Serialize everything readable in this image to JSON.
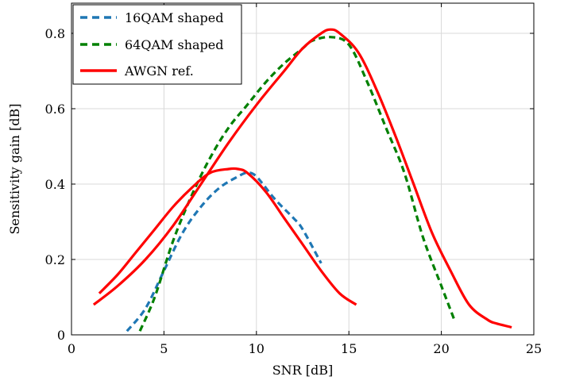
{
  "chart_data": {
    "type": "line",
    "title": "",
    "xlabel": "SNR [dB]",
    "ylabel": "Sensitivity gain [dB]",
    "xlim": [
      0,
      25
    ],
    "ylim": [
      0,
      0.88
    ],
    "xticks": [
      0,
      5,
      10,
      15,
      20,
      25
    ],
    "xtick_labels": [
      "0",
      "5",
      "10",
      "15",
      "20",
      "25"
    ],
    "yticks": [
      0,
      0.2,
      0.4,
      0.6,
      0.8
    ],
    "ytick_labels": [
      "0",
      "0.2",
      "0.4",
      "0.6",
      "0.8"
    ],
    "grid": true,
    "legend_position": "top-left",
    "legend": [
      {
        "label": "16QAM shaped",
        "color": "#1f77b4",
        "style": "dashed"
      },
      {
        "label": "64QAM shaped",
        "color": "#008000",
        "style": "dashed"
      },
      {
        "label": "AWGN ref.",
        "color": "#ff0000",
        "style": "solid"
      }
    ],
    "series": [
      {
        "legend_index": 0,
        "color": "#1f77b4",
        "style": "dashed",
        "x": [
          3,
          4,
          5,
          6,
          7,
          8,
          9,
          9.5,
          10,
          11,
          12,
          12.5,
          13.5
        ],
        "y": [
          0.01,
          0.07,
          0.17,
          0.27,
          0.34,
          0.39,
          0.42,
          0.43,
          0.42,
          0.36,
          0.31,
          0.28,
          0.19
        ]
      },
      {
        "legend_index": 1,
        "color": "#008000",
        "style": "dashed",
        "x": [
          3.7,
          4.5,
          5.5,
          6.5,
          7.5,
          8.5,
          9.5,
          10.5,
          11.5,
          12.5,
          13,
          14,
          15,
          16,
          17,
          18,
          19,
          20,
          20.7
        ],
        "y": [
          0.01,
          0.1,
          0.25,
          0.37,
          0.47,
          0.55,
          0.61,
          0.67,
          0.72,
          0.76,
          0.78,
          0.79,
          0.77,
          0.67,
          0.55,
          0.43,
          0.26,
          0.13,
          0.04
        ]
      },
      {
        "legend_index": 2,
        "color": "#ff0000",
        "style": "solid",
        "x": [
          1.5,
          2.5,
          3.5,
          4.5,
          5.5,
          6.5,
          7.5,
          8.5,
          9,
          9.5,
          10.5,
          11.5,
          12.5,
          13.5,
          14.5,
          15.4
        ],
        "y": [
          0.11,
          0.16,
          0.22,
          0.28,
          0.34,
          0.39,
          0.43,
          0.44,
          0.44,
          0.43,
          0.38,
          0.31,
          0.24,
          0.17,
          0.11,
          0.08
        ]
      },
      {
        "legend_index": null,
        "color": "#ff0000",
        "style": "solid",
        "x": [
          1.2,
          2.5,
          4,
          5.5,
          7,
          8.5,
          10,
          11.5,
          12.5,
          13.5,
          14,
          14.5,
          15.5,
          16.5,
          17.5,
          18.5,
          19.5,
          20.5,
          21.5,
          22.5,
          23,
          23.8
        ],
        "y": [
          0.08,
          0.13,
          0.2,
          0.29,
          0.4,
          0.51,
          0.61,
          0.7,
          0.76,
          0.8,
          0.81,
          0.8,
          0.75,
          0.65,
          0.53,
          0.4,
          0.27,
          0.17,
          0.08,
          0.04,
          0.03,
          0.02
        ]
      }
    ]
  }
}
